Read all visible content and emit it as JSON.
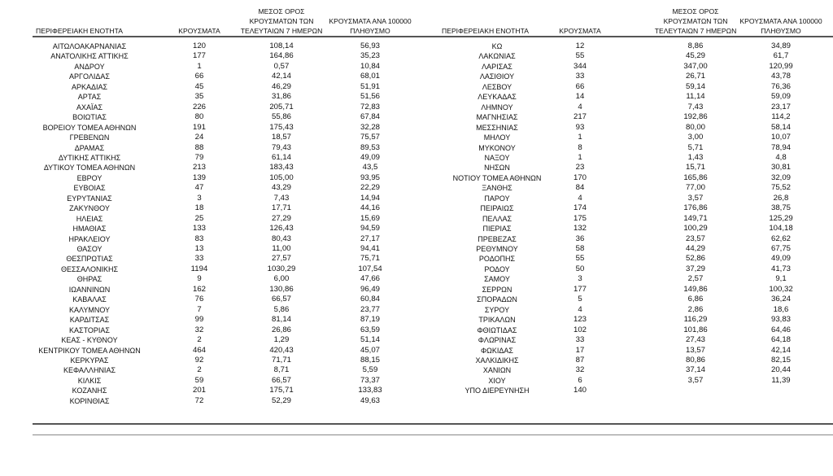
{
  "headers": {
    "region": "ΠΕΡΙΦΕΡΕΙΑΚΗ ΕΝΟΤΗΤΑ",
    "cases": "ΚΡΟΥΣΜΑΤΑ",
    "avg7": [
      "ΜΕΣΟΣ ΟΡΟΣ",
      "ΚΡΟΥΣΜΑΤΩΝ ΤΩΝ",
      "ΤΕΛΕΥΤΑΙΩΝ 7 ΗΜΕΡΩΝ"
    ],
    "per100k": [
      "ΚΡΟΥΣΜΑΤΑ ΑΝΑ 100000",
      "ΠΛΗΘΥΣΜΟ"
    ]
  },
  "left_rows": [
    [
      "ΑΙΤΩΛΟΑΚΑΡΝΑΝΙΑΣ",
      "120",
      "108,14",
      "56,93"
    ],
    [
      "ΑΝΑΤΟΛΙΚΗΣ ΑΤΤΙΚΗΣ",
      "177",
      "164,86",
      "35,23"
    ],
    [
      "ΑΝΔΡΟΥ",
      "1",
      "0,57",
      "10,84"
    ],
    [
      "ΑΡΓΟΛΙΔΑΣ",
      "66",
      "42,14",
      "68,01"
    ],
    [
      "ΑΡΚΑΔΙΑΣ",
      "45",
      "46,29",
      "51,91"
    ],
    [
      "ΑΡΤΑΣ",
      "35",
      "31,86",
      "51,56"
    ],
    [
      "ΑΧΑΪΑΣ",
      "226",
      "205,71",
      "72,83"
    ],
    [
      "ΒΟΙΩΤΙΑΣ",
      "80",
      "55,86",
      "67,84"
    ],
    [
      "ΒΟΡΕΙΟΥ ΤΟΜΕΑ ΑΘΗΝΩΝ",
      "191",
      "175,43",
      "32,28"
    ],
    [
      "ΓΡΕΒΕΝΩΝ",
      "24",
      "18,57",
      "75,57"
    ],
    [
      "ΔΡΑΜΑΣ",
      "88",
      "79,43",
      "89,53"
    ],
    [
      "ΔΥΤΙΚΗΣ ΑΤΤΙΚΗΣ",
      "79",
      "61,14",
      "49,09"
    ],
    [
      "ΔΥΤΙΚΟΥ ΤΟΜΕΑ ΑΘΗΝΩΝ",
      "213",
      "183,43",
      "43,5"
    ],
    [
      "ΕΒΡΟΥ",
      "139",
      "105,00",
      "93,95"
    ],
    [
      "ΕΥΒΟΙΑΣ",
      "47",
      "43,29",
      "22,29"
    ],
    [
      "ΕΥΡΥΤΑΝΙΑΣ",
      "3",
      "7,43",
      "14,94"
    ],
    [
      "ΖΑΚΥΝΘΟΥ",
      "18",
      "17,71",
      "44,16"
    ],
    [
      "ΗΛΕΙΑΣ",
      "25",
      "27,29",
      "15,69"
    ],
    [
      "ΗΜΑΘΙΑΣ",
      "133",
      "126,43",
      "94,59"
    ],
    [
      "ΗΡΑΚΛΕΙΟΥ",
      "83",
      "80,43",
      "27,17"
    ],
    [
      "ΘΑΣΟΥ",
      "13",
      "11,00",
      "94,41"
    ],
    [
      "ΘΕΣΠΡΩΤΙΑΣ",
      "33",
      "27,57",
      "75,71"
    ],
    [
      "ΘΕΣΣΑΛΟΝΙΚΗΣ",
      "1194",
      "1030,29",
      "107,54"
    ],
    [
      "ΘΗΡΑΣ",
      "9",
      "6,00",
      "47,66"
    ],
    [
      "ΙΩΑΝΝΙΝΩΝ",
      "162",
      "130,86",
      "96,49"
    ],
    [
      "ΚΑΒΑΛΑΣ",
      "76",
      "66,57",
      "60,84"
    ],
    [
      "ΚΑΛΥΜΝΟΥ",
      "7",
      "5,86",
      "23,77"
    ],
    [
      "ΚΑΡΔΙΤΣΑΣ",
      "99",
      "81,14",
      "87,19"
    ],
    [
      "ΚΑΣΤΟΡΙΑΣ",
      "32",
      "26,86",
      "63,59"
    ],
    [
      "ΚΕΑΣ - ΚΥΘΝΟΥ",
      "2",
      "1,29",
      "51,14"
    ],
    [
      "ΚΕΝΤΡΙΚΟΥ ΤΟΜΕΑ ΑΘΗΝΩΝ",
      "464",
      "420,43",
      "45,07"
    ],
    [
      "ΚΕΡΚΥΡΑΣ",
      "92",
      "71,71",
      "88,15"
    ],
    [
      "ΚΕΦΑΛΛΗΝΙΑΣ",
      "2",
      "8,71",
      "5,59"
    ],
    [
      "ΚΙΛΚΙΣ",
      "59",
      "66,57",
      "73,37"
    ],
    [
      "ΚΟΖΑΝΗΣ",
      "201",
      "175,71",
      "133,83"
    ],
    [
      "ΚΟΡΙΝΘΙΑΣ",
      "72",
      "52,29",
      "49,63"
    ]
  ],
  "right_rows": [
    [
      "ΚΩ",
      "12",
      "8,86",
      "34,89"
    ],
    [
      "ΛΑΚΩΝΙΑΣ",
      "55",
      "45,29",
      "61,7"
    ],
    [
      "ΛΑΡΙΣΑΣ",
      "344",
      "347,00",
      "120,99"
    ],
    [
      "ΛΑΣΙΘΙΟΥ",
      "33",
      "26,71",
      "43,78"
    ],
    [
      "ΛΕΣΒΟΥ",
      "66",
      "59,14",
      "76,36"
    ],
    [
      "ΛΕΥΚΑΔΑΣ",
      "14",
      "11,14",
      "59,09"
    ],
    [
      "ΛΗΜΝΟΥ",
      "4",
      "7,43",
      "23,17"
    ],
    [
      "ΜΑΓΝΗΣΙΑΣ",
      "217",
      "192,86",
      "114,2"
    ],
    [
      "ΜΕΣΣΗΝΙΑΣ",
      "93",
      "80,00",
      "58,14"
    ],
    [
      "ΜΗΛΟΥ",
      "1",
      "3,00",
      "10,07"
    ],
    [
      "ΜΥΚΟΝΟΥ",
      "8",
      "5,71",
      "78,94"
    ],
    [
      "ΝΑΞΟΥ",
      "1",
      "1,43",
      "4,8"
    ],
    [
      "ΝΗΣΩΝ",
      "23",
      "15,71",
      "30,81"
    ],
    [
      "ΝΟΤΙΟΥ ΤΟΜΕΑ ΑΘΗΝΩΝ",
      "170",
      "165,86",
      "32,09"
    ],
    [
      "ΞΑΝΘΗΣ",
      "84",
      "77,00",
      "75,52"
    ],
    [
      "ΠΑΡΟΥ",
      "4",
      "3,57",
      "26,8"
    ],
    [
      "ΠΕΙΡΑΙΩΣ",
      "174",
      "176,86",
      "38,75"
    ],
    [
      "ΠΕΛΛΑΣ",
      "175",
      "149,71",
      "125,29"
    ],
    [
      "ΠΙΕΡΙΑΣ",
      "132",
      "100,29",
      "104,18"
    ],
    [
      "ΠΡΕΒΕΖΑΣ",
      "36",
      "23,57",
      "62,62"
    ],
    [
      "ΡΕΘΥΜΝΟΥ",
      "58",
      "44,29",
      "67,75"
    ],
    [
      "ΡΟΔΟΠΗΣ",
      "55",
      "52,86",
      "49,09"
    ],
    [
      "ΡΟΔΟΥ",
      "50",
      "37,29",
      "41,73"
    ],
    [
      "ΣΑΜΟΥ",
      "3",
      "2,57",
      "9,1"
    ],
    [
      "ΣΕΡΡΩΝ",
      "177",
      "149,86",
      "100,32"
    ],
    [
      "ΣΠΟΡΑΔΩΝ",
      "5",
      "6,86",
      "36,24"
    ],
    [
      "ΣΥΡΟΥ",
      "4",
      "2,86",
      "18,6"
    ],
    [
      "ΤΡΙΚΑΛΩΝ",
      "123",
      "116,29",
      "93,83"
    ],
    [
      "ΦΘΙΩΤΙΔΑΣ",
      "102",
      "101,86",
      "64,46"
    ],
    [
      "ΦΛΩΡΙΝΑΣ",
      "33",
      "27,43",
      "64,18"
    ],
    [
      "ΦΩΚΙΔΑΣ",
      "17",
      "13,57",
      "42,14"
    ],
    [
      "ΧΑΛΚΙΔΙΚΗΣ",
      "87",
      "80,86",
      "82,15"
    ],
    [
      "ΧΑΝΙΩΝ",
      "32",
      "37,14",
      "20,44"
    ],
    [
      "ΧΙΟΥ",
      "6",
      "3,57",
      "11,39"
    ],
    [
      "ΥΠΟ ΔΙΕΡΕΥΝΗΣΗ",
      "140",
      "",
      ""
    ]
  ]
}
